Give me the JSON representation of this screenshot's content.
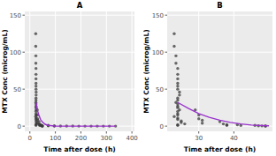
{
  "chart_data": [
    {
      "type": "scatter",
      "title": "A",
      "x_label": "Time after dose (h)",
      "y_label": "MTX Conc (microg/mL)",
      "xlim": [
        -20,
        410
      ],
      "ylim": [
        -7,
        155
      ],
      "xticks": [
        0,
        100,
        200,
        300,
        400
      ],
      "yticks": [
        0,
        50,
        100,
        150
      ],
      "grid": true,
      "series": [
        {
          "type": "scatter",
          "marker": "circle",
          "color": "#3a3a3a",
          "x": [
            23,
            23,
            23.5,
            23.5,
            24,
            24,
            24,
            24,
            24,
            24,
            24.5,
            24.5,
            24,
            24,
            23.5,
            24,
            24,
            24,
            24.5,
            24,
            24,
            24,
            23,
            24,
            24,
            25,
            25,
            26,
            24,
            24,
            29,
            30,
            30,
            31,
            31,
            36,
            37,
            38,
            38,
            41,
            42,
            46,
            47,
            48,
            49,
            49,
            72,
            72,
            96,
            96,
            120,
            144,
            168,
            192,
            216,
            240,
            264,
            288,
            312,
            336
          ],
          "values": [
            125,
            108,
            95,
            85,
            78,
            70,
            64,
            58,
            54,
            50,
            46,
            42,
            38,
            35,
            32,
            30,
            27,
            25,
            22,
            20,
            17,
            15,
            13,
            11,
            9,
            7,
            5,
            3,
            2,
            1,
            22,
            15,
            10,
            8,
            4,
            6,
            3,
            2,
            1,
            2,
            1,
            1,
            0.5,
            0.3,
            0.2,
            0.1,
            1,
            0.5,
            0.3,
            0.2,
            0.1,
            0.1,
            0.1,
            0,
            0,
            0,
            0,
            0,
            0,
            0
          ]
        },
        {
          "type": "line",
          "line_style": "solid",
          "color": "#9932cc",
          "x": [
            24,
            30,
            36,
            42,
            48,
            60,
            72,
            96,
            120,
            168,
            240,
            336
          ],
          "values": [
            32,
            21,
            14,
            9,
            6,
            2.5,
            1,
            0.2,
            0.05,
            0,
            0,
            0
          ]
        }
      ]
    },
    {
      "type": "scatter",
      "title": "B",
      "x_label": "Time after dose (h)",
      "y_label": "MTX Conc (microg/mL)",
      "xlim": [
        21,
        51
      ],
      "ylim": [
        -7,
        155
      ],
      "xticks": [
        30,
        40
      ],
      "yticks": [
        0,
        50,
        100,
        150
      ],
      "grid": true,
      "series": [
        {
          "type": "scatter",
          "marker": "circle",
          "color": "#3a3a3a",
          "x": [
            23,
            23,
            23.5,
            23.5,
            24,
            24,
            24,
            24,
            24,
            24,
            24.5,
            24.5,
            24,
            24,
            23.5,
            24,
            24,
            24,
            24.5,
            24,
            24,
            24,
            23,
            24,
            24,
            25,
            25,
            26,
            24,
            24,
            29,
            30,
            30,
            31,
            31,
            36,
            37,
            38,
            38,
            41,
            42,
            46,
            47,
            48,
            49,
            49
          ],
          "values": [
            125,
            108,
            95,
            85,
            78,
            70,
            64,
            58,
            54,
            50,
            46,
            42,
            38,
            35,
            32,
            30,
            27,
            25,
            22,
            20,
            17,
            15,
            13,
            11,
            9,
            7,
            5,
            3,
            2,
            1,
            22,
            15,
            10,
            8,
            4,
            6,
            3,
            2,
            1,
            2,
            1,
            1,
            0.5,
            0.3,
            0.2,
            0.1
          ]
        },
        {
          "type": "line",
          "line_style": "solid",
          "color": "#9932cc",
          "x": [
            24,
            27,
            30,
            33,
            36,
            39,
            42,
            45,
            48,
            50
          ],
          "values": [
            32,
            24,
            17,
            12,
            8,
            5,
            3,
            1.5,
            0.8,
            0.5
          ]
        }
      ]
    }
  ]
}
